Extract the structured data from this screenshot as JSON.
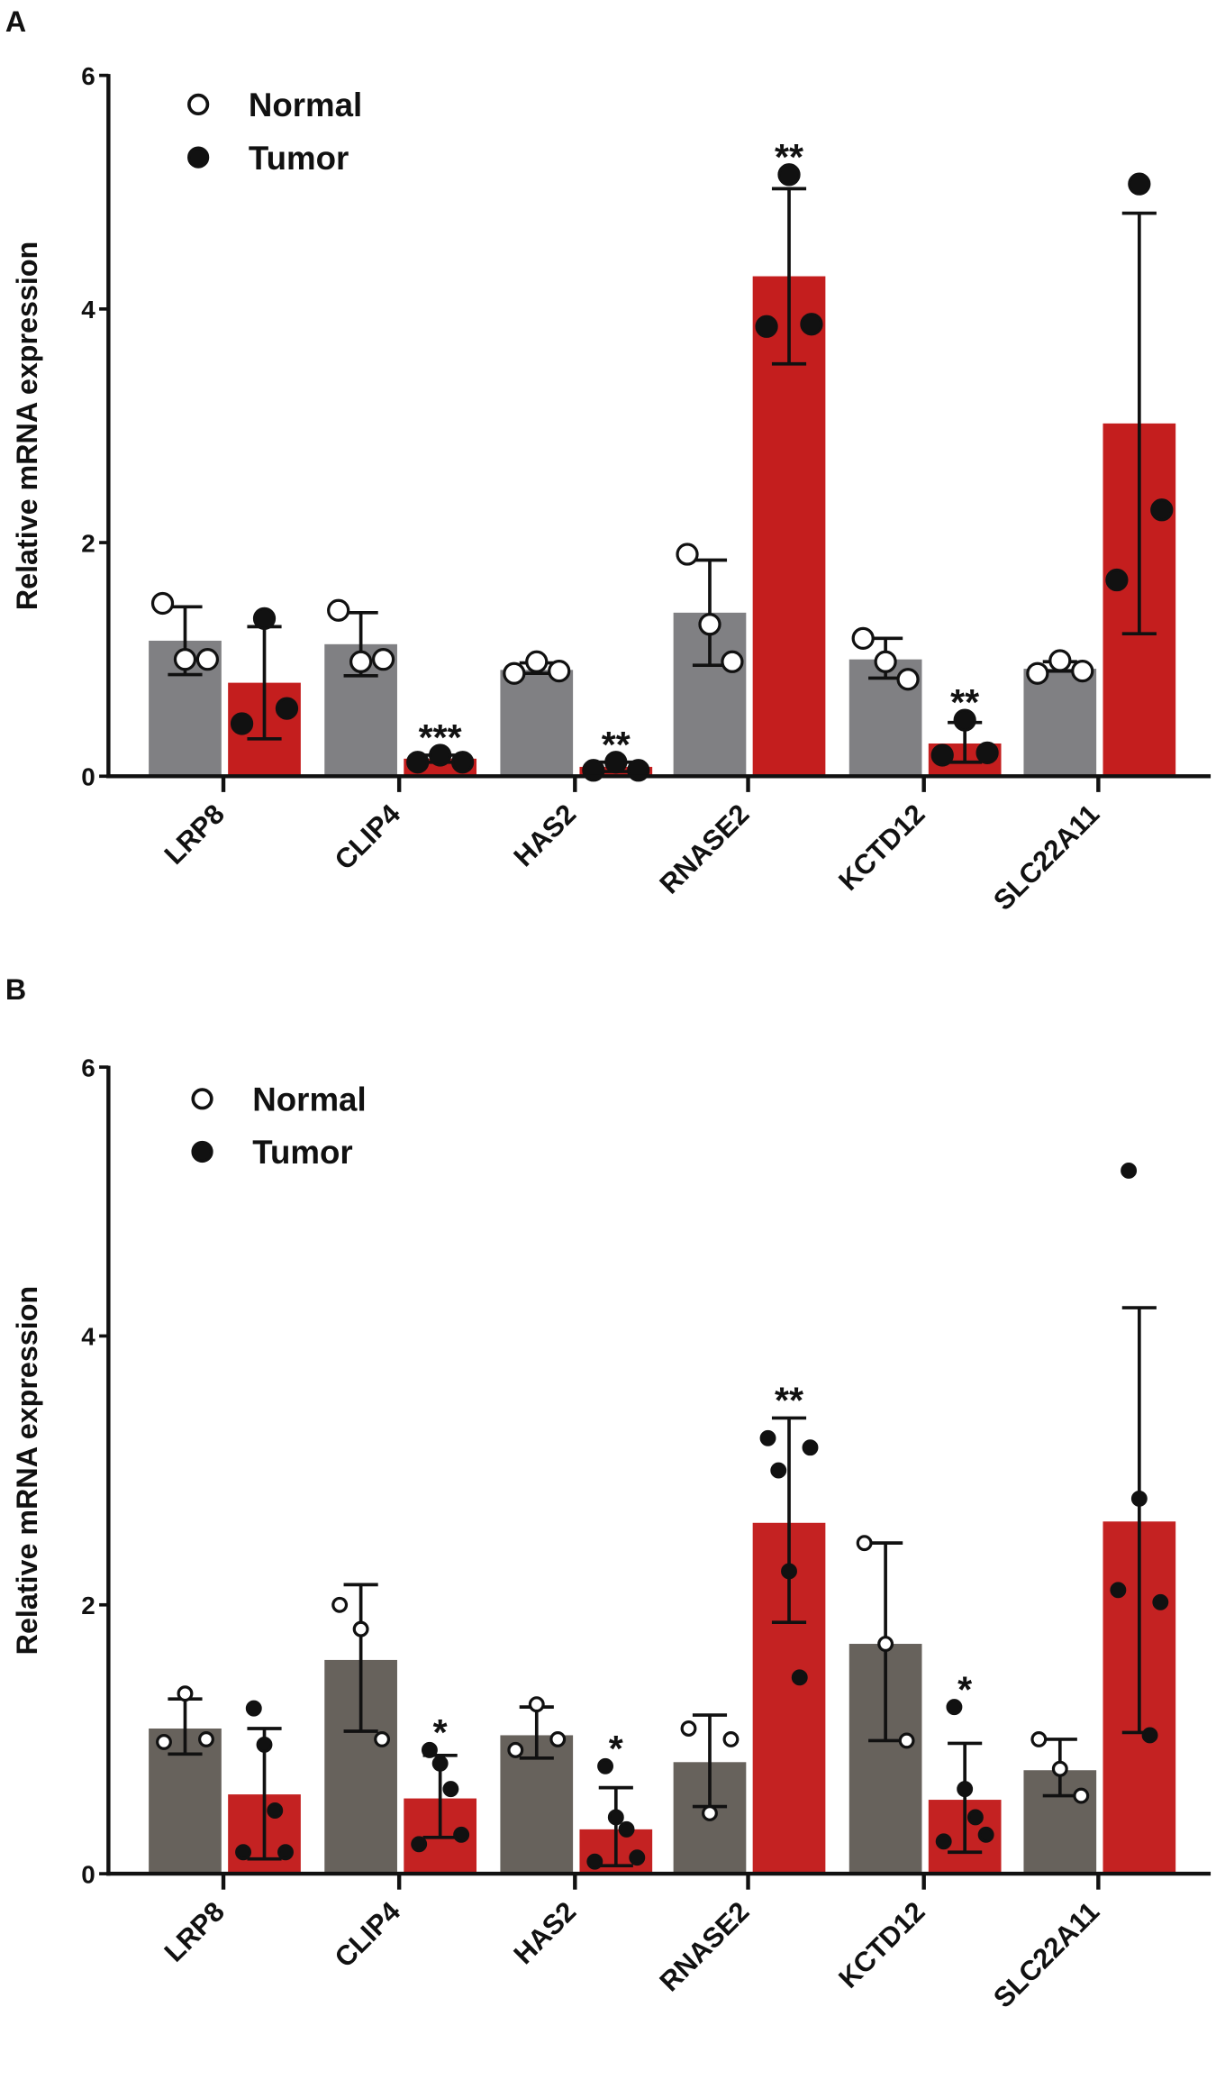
{
  "chart_data": [
    {
      "panel_label": "A",
      "type": "bar",
      "ylabel": "Relative mRNA expression",
      "xlabel": "",
      "ylim": [
        0,
        6
      ],
      "yticks": [
        0,
        2,
        4,
        6
      ],
      "categories": [
        "LRP8",
        "CLIP4",
        "HAS2",
        "RNASE2",
        "KCTD12",
        "SLC22A11"
      ],
      "legend": {
        "placement": "top-left",
        "entries": [
          "Normal",
          "Tumor"
        ]
      },
      "colors": {
        "Normal": "#808083",
        "Tumor": "#c41e1e"
      },
      "series": [
        {
          "name": "Normal",
          "values": [
            1.16,
            1.13,
            0.91,
            1.4,
            1.0,
            0.92
          ],
          "error_upper": [
            1.45,
            1.4,
            0.97,
            1.85,
            1.18,
            0.98
          ],
          "error_lower": [
            0.87,
            0.86,
            0.88,
            0.95,
            0.84,
            0.9
          ],
          "points": [
            [
              1.48,
              1.0,
              1.0
            ],
            [
              1.42,
              0.98,
              1.0
            ],
            [
              0.88,
              0.98,
              0.9
            ],
            [
              1.9,
              1.3,
              0.98
            ],
            [
              1.18,
              0.98,
              0.83
            ],
            [
              0.88,
              0.99,
              0.9
            ]
          ]
        },
        {
          "name": "Tumor",
          "values": [
            0.8,
            0.15,
            0.08,
            4.28,
            0.28,
            3.02
          ],
          "error_upper": [
            1.28,
            0.18,
            0.12,
            5.03,
            0.46,
            4.82
          ],
          "error_lower": [
            0.32,
            0.12,
            0.04,
            3.53,
            0.12,
            1.22
          ],
          "points": [
            [
              0.45,
              1.35,
              0.58
            ],
            [
              0.12,
              0.18,
              0.12
            ],
            [
              0.05,
              0.12,
              0.05
            ],
            [
              3.85,
              5.15,
              3.87
            ],
            [
              0.18,
              0.48,
              0.2
            ],
            [
              1.68,
              5.07,
              2.28
            ]
          ]
        }
      ],
      "significance": [
        "",
        "***",
        "**",
        "**",
        "**",
        ""
      ]
    },
    {
      "panel_label": "B",
      "type": "bar",
      "ylabel": "Relative mRNA expression",
      "xlabel": "",
      "ylim": [
        0,
        6
      ],
      "yticks": [
        0,
        2,
        4,
        6
      ],
      "categories": [
        "LRP8",
        "CLIP4",
        "HAS2",
        "RNASE2",
        "KCTD12",
        "SLC22A11"
      ],
      "legend": {
        "placement": "top-left",
        "entries": [
          "Normal",
          "Tumor"
        ]
      },
      "colors": {
        "Normal": "#67625c",
        "Tumor": "#c42222"
      },
      "series": [
        {
          "name": "Normal",
          "values": [
            1.08,
            1.59,
            1.03,
            0.83,
            1.71,
            0.77
          ],
          "error_upper": [
            1.3,
            2.15,
            1.24,
            1.18,
            2.46,
            1.0
          ],
          "error_lower": [
            0.89,
            1.06,
            0.86,
            0.5,
            0.99,
            0.58
          ],
          "points": [
            [
              0.98,
              1.34,
              1.0
            ],
            [
              2.0,
              1.82,
              1.0
            ],
            [
              0.92,
              1.26,
              1.0
            ],
            [
              1.08,
              0.45,
              1.0
            ],
            [
              2.46,
              1.71,
              0.99
            ],
            [
              1.0,
              0.78,
              0.58
            ]
          ]
        },
        {
          "name": "Tumor",
          "values": [
            0.59,
            0.56,
            0.33,
            2.61,
            0.55,
            2.62
          ],
          "error_upper": [
            1.08,
            0.88,
            0.64,
            3.39,
            0.97,
            4.21
          ],
          "error_lower": [
            0.11,
            0.27,
            0.06,
            1.87,
            0.16,
            1.05
          ],
          "points": [
            [
              0.16,
              1.23,
              0.96,
              0.47,
              0.16
            ],
            [
              0.22,
              0.92,
              0.82,
              0.63,
              0.29
            ],
            [
              0.09,
              0.8,
              0.42,
              0.33,
              0.12
            ],
            [
              3.24,
              3.0,
              2.25,
              1.46,
              3.17
            ],
            [
              0.24,
              1.24,
              0.63,
              0.42,
              0.29
            ],
            [
              2.11,
              5.23,
              2.79,
              1.03,
              2.02
            ]
          ]
        }
      ],
      "significance": [
        "",
        "*",
        "*",
        "**",
        "*",
        ""
      ]
    }
  ]
}
